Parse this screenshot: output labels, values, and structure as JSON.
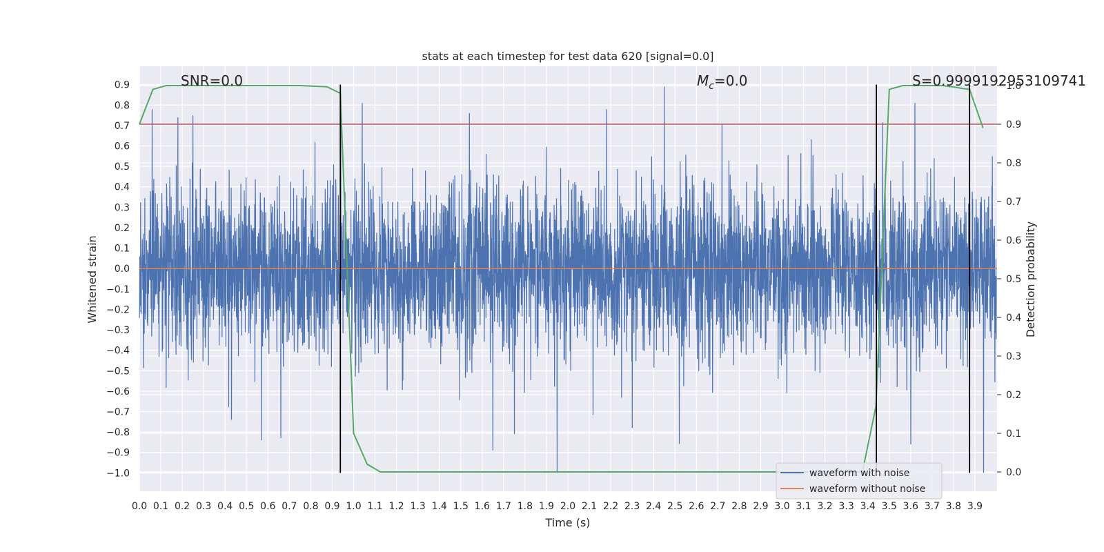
{
  "chart_data": {
    "type": "line",
    "title": "stats at each timestep for test data 620 [signal=0.0]",
    "xlabel": "Time (s)",
    "ylabel": "Whitened strain",
    "y2label": "Detection probability",
    "xlim": [
      0.0,
      4.0
    ],
    "ylim": [
      -1.09,
      0.99
    ],
    "y2lim": [
      -0.05,
      1.05
    ],
    "x_ticks": [
      "0.0",
      "0.1",
      "0.2",
      "0.3",
      "0.4",
      "0.5",
      "0.6",
      "0.7",
      "0.8",
      "0.9",
      "1.0",
      "1.1",
      "1.2",
      "1.3",
      "1.4",
      "1.5",
      "1.6",
      "1.7",
      "1.8",
      "1.9",
      "2.0",
      "2.1",
      "2.2",
      "2.3",
      "2.4",
      "2.5",
      "2.6",
      "2.7",
      "2.8",
      "2.9",
      "3.0",
      "3.1",
      "3.2",
      "3.3",
      "3.4",
      "3.5",
      "3.6",
      "3.7",
      "3.8",
      "3.9"
    ],
    "y_ticks": [
      "0.9",
      "0.8",
      "0.7",
      "0.6",
      "0.5",
      "0.4",
      "0.3",
      "0.2",
      "0.1",
      "0.0",
      "−0.1",
      "−0.2",
      "−0.3",
      "−0.4",
      "−0.5",
      "−0.6",
      "−0.7",
      "−0.8",
      "−0.9",
      "−1.0"
    ],
    "y2_ticks": [
      "1.0",
      "0.9",
      "0.8",
      "0.7",
      "0.6",
      "0.5",
      "0.4",
      "0.3",
      "0.2",
      "0.1",
      "0.0"
    ],
    "grid": true,
    "legend_position": "lower-right",
    "annotations": {
      "snr": "SNR=0.0",
      "mc_symbol": "M",
      "mc_sub": "c",
      "mc_value": "=0.0",
      "s": "S=0.9999192953109741"
    },
    "series": [
      {
        "name": "waveform with noise",
        "color": "#4c72b0",
        "x_range": [
          0.0,
          4.0
        ],
        "typical_amplitude": [
          -0.5,
          0.5
        ],
        "peaks": [
          {
            "x": 0.06,
            "y": 0.78
          },
          {
            "x": 0.18,
            "y": 0.74
          },
          {
            "x": 0.25,
            "y": 0.75
          },
          {
            "x": 0.82,
            "y": 0.62
          },
          {
            "x": 0.94,
            "y": 0.86
          },
          {
            "x": 1.04,
            "y": 0.81
          },
          {
            "x": 1.54,
            "y": 0.76
          },
          {
            "x": 2.18,
            "y": 0.78
          },
          {
            "x": 2.45,
            "y": 0.89
          },
          {
            "x": 3.62,
            "y": 0.81
          },
          {
            "x": 3.94,
            "y": -1.0
          }
        ],
        "troughs": [
          {
            "x": 0.43,
            "y": -0.74
          },
          {
            "x": 0.57,
            "y": -0.84
          },
          {
            "x": 0.66,
            "y": -0.83
          },
          {
            "x": 1.65,
            "y": -0.89
          },
          {
            "x": 1.75,
            "y": -0.81
          },
          {
            "x": 1.95,
            "y": -1.0
          },
          {
            "x": 2.3,
            "y": -0.78
          },
          {
            "x": 3.6,
            "y": -0.86
          }
        ]
      },
      {
        "name": "waveform without noise",
        "color": "#dd8452",
        "x": [
          0.0,
          4.0
        ],
        "y": [
          0.0,
          0.0
        ]
      },
      {
        "name": "",
        "color": "#55a868",
        "axis": "right",
        "x": [
          0.0,
          0.063,
          0.125,
          0.25,
          0.5,
          0.75,
          0.875,
          0.938,
          1.0,
          1.063,
          1.125,
          1.25,
          1.5,
          2.0,
          2.5,
          3.0,
          3.25,
          3.375,
          3.438,
          3.5,
          3.563,
          3.75,
          3.875,
          3.938
        ],
        "y": [
          0.9,
          0.99,
          1.0,
          1.0,
          1.0,
          1.0,
          0.997,
          0.98,
          0.1,
          0.02,
          0.0,
          0.0,
          0.0,
          0.0,
          0.0,
          0.0,
          0.0,
          0.0,
          0.17,
          0.99,
          1.0,
          1.0,
          0.99,
          0.89
        ]
      }
    ],
    "threshold": {
      "axis": "right",
      "y": 0.9,
      "color": "#c44e52"
    },
    "vertical_markers": {
      "x": [
        0.938,
        3.44,
        3.875
      ],
      "color": "#000000",
      "y_range": [
        -1.0,
        0.9
      ]
    }
  }
}
